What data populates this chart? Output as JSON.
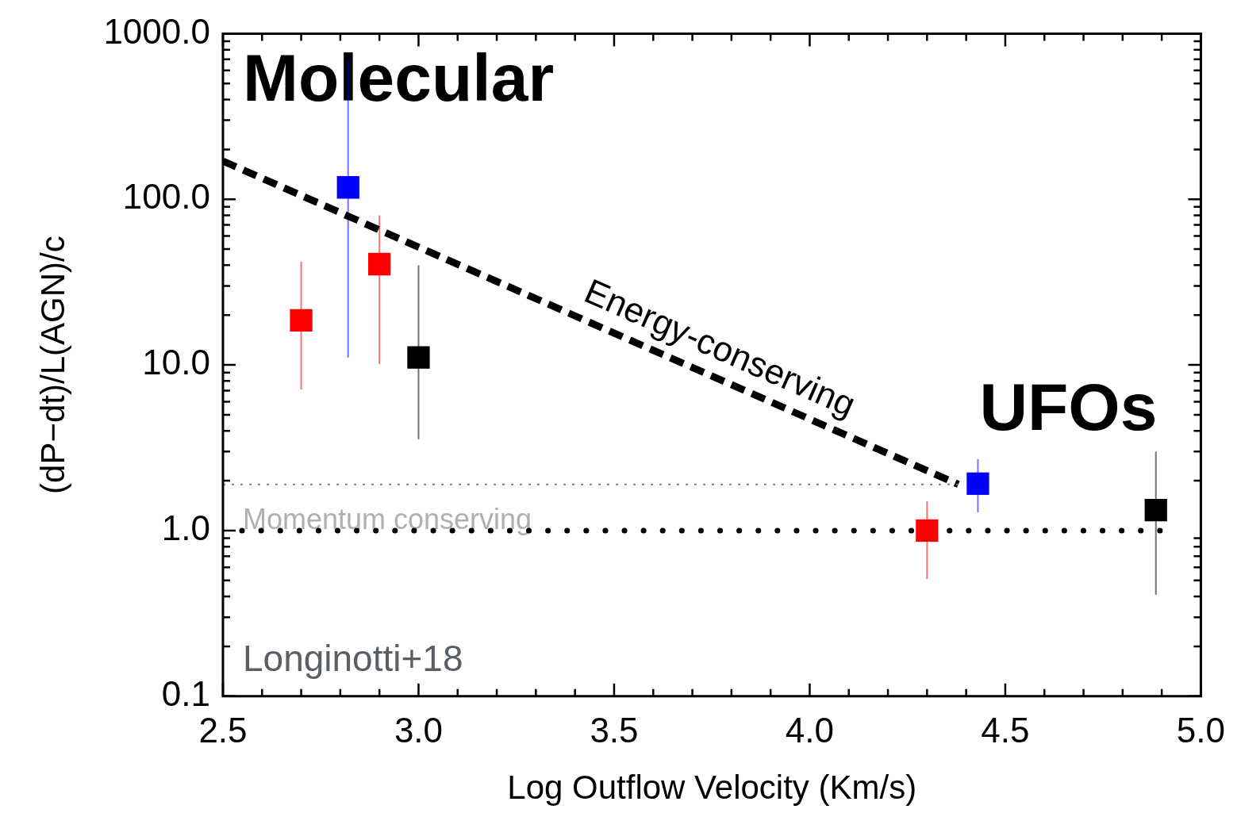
{
  "chart_data": {
    "type": "scatter",
    "xlabel": "Log Outflow Velocity (Km/s)",
    "ylabel": "(dP−dt)/L(AGN)/c",
    "log": "y",
    "marker": "square",
    "xlim": [
      2.5,
      5.0
    ],
    "ylim": [
      0.1,
      1000
    ],
    "xticks": [
      {
        "value": 2.5,
        "label": "2.5"
      },
      {
        "value": 2.6,
        "label": null
      },
      {
        "value": 2.7,
        "label": null
      },
      {
        "value": 2.8,
        "label": null
      },
      {
        "value": 2.9,
        "label": null
      },
      {
        "value": 3.0,
        "label": "3.0"
      },
      {
        "value": 3.1,
        "label": null
      },
      {
        "value": 3.2,
        "label": null
      },
      {
        "value": 3.3,
        "label": null
      },
      {
        "value": 3.4,
        "label": null
      },
      {
        "value": 3.5,
        "label": "3.5"
      },
      {
        "value": 3.6,
        "label": null
      },
      {
        "value": 3.7,
        "label": null
      },
      {
        "value": 3.8,
        "label": null
      },
      {
        "value": 3.9,
        "label": null
      },
      {
        "value": 4.0,
        "label": "4.0"
      },
      {
        "value": 4.1,
        "label": null
      },
      {
        "value": 4.2,
        "label": null
      },
      {
        "value": 4.3,
        "label": null
      },
      {
        "value": 4.4,
        "label": null
      },
      {
        "value": 4.5,
        "label": "4.5"
      },
      {
        "value": 4.6,
        "label": null
      },
      {
        "value": 4.7,
        "label": null
      },
      {
        "value": 4.8,
        "label": null
      },
      {
        "value": 4.9,
        "label": null
      },
      {
        "value": 5.0,
        "label": "5.0"
      }
    ],
    "yticks": [
      {
        "value": 0.1,
        "label": "0.1"
      },
      {
        "value": 0.2,
        "label": null
      },
      {
        "value": 0.3,
        "label": null
      },
      {
        "value": 0.4,
        "label": null
      },
      {
        "value": 0.5,
        "label": null
      },
      {
        "value": 0.6,
        "label": null
      },
      {
        "value": 0.7,
        "label": null
      },
      {
        "value": 0.8,
        "label": null
      },
      {
        "value": 0.9,
        "label": null
      },
      {
        "value": 1,
        "label": "1.0"
      },
      {
        "value": 2,
        "label": null
      },
      {
        "value": 3,
        "label": null
      },
      {
        "value": 4,
        "label": null
      },
      {
        "value": 5,
        "label": null
      },
      {
        "value": 6,
        "label": null
      },
      {
        "value": 7,
        "label": null
      },
      {
        "value": 8,
        "label": null
      },
      {
        "value": 9,
        "label": null
      },
      {
        "value": 10,
        "label": "10.0"
      },
      {
        "value": 20,
        "label": null
      },
      {
        "value": 30,
        "label": null
      },
      {
        "value": 40,
        "label": null
      },
      {
        "value": 50,
        "label": null
      },
      {
        "value": 60,
        "label": null
      },
      {
        "value": 70,
        "label": null
      },
      {
        "value": 80,
        "label": null
      },
      {
        "value": 90,
        "label": null
      },
      {
        "value": 100,
        "label": "100.0"
      },
      {
        "value": 200,
        "label": null
      },
      {
        "value": 300,
        "label": null
      },
      {
        "value": 400,
        "label": null
      },
      {
        "value": 500,
        "label": null
      },
      {
        "value": 600,
        "label": null
      },
      {
        "value": 700,
        "label": null
      },
      {
        "value": 800,
        "label": null
      },
      {
        "value": 900,
        "label": null
      },
      {
        "value": 1000,
        "label": "1000.0"
      }
    ],
    "series": [
      {
        "type": "line",
        "color": "#808080",
        "line_style": "dotted",
        "marker": "none",
        "x": [
          2.5,
          4.38
        ],
        "values": [
          1.9,
          1.9
        ]
      },
      {
        "type": "line",
        "color": "#000000",
        "line_style": "dashed",
        "marker": "none",
        "x": [
          2.5,
          4.38
        ],
        "values": [
          170,
          1.9
        ]
      },
      {
        "color": "#ff0000",
        "x": [
          2.7,
          2.9,
          4.3
        ],
        "values": [
          18.6,
          40.6,
          1.0
        ],
        "errors": [
          [
            7.1,
            42
          ],
          [
            10.1,
            80
          ],
          [
            0.51,
            1.5
          ]
        ]
      },
      {
        "color": "#0000ff",
        "x": [
          2.82,
          4.43
        ],
        "values": [
          118,
          1.92
        ],
        "errors": [
          [
            11.1,
            690
          ],
          [
            1.29,
            2.7
          ]
        ]
      },
      {
        "color": "#000000",
        "x": [
          3.0,
          4.885
        ],
        "values": [
          11.1,
          1.33
        ],
        "errors": [
          [
            3.56,
            40
          ],
          [
            0.41,
            3.0
          ]
        ]
      }
    ],
    "ref_lines": [
      {
        "axis": "y",
        "value": 1,
        "label": "Momentum conserving",
        "color": "#000000",
        "line_style": "dotted"
      }
    ],
    "annotations": [
      "Molecular",
      "Energy-conserving",
      "UFOs",
      "Longinotti+18"
    ]
  }
}
